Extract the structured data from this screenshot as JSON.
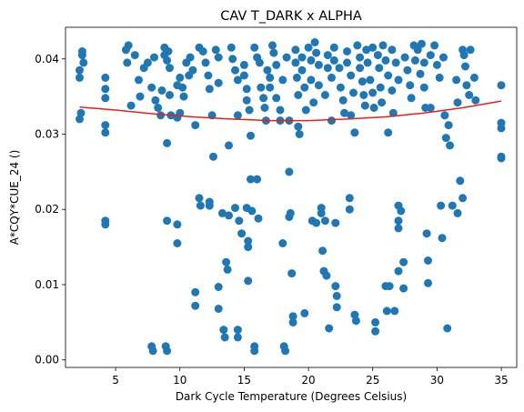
{
  "chart_data": {
    "type": "scatter",
    "title": "CAV T_DARK x ALPHA",
    "xlabel": "Dark Cycle Temperature (Degrees Celsius)",
    "ylabel": "A*CQY*CUE_24 ()",
    "xlim": [
      1.1,
      36.2
    ],
    "ylim": [
      -0.001,
      0.0442
    ],
    "xticks": [
      5,
      10,
      15,
      20,
      25,
      30,
      35
    ],
    "yticks": [
      0.0,
      0.01,
      0.02,
      0.03,
      0.04
    ],
    "ytick_labels": [
      "0.00",
      "0.01",
      "0.02",
      "0.03",
      "0.04"
    ],
    "grid": false,
    "legend": "none",
    "colors": {
      "points": "#1f77b4",
      "fit": "#e8201a"
    },
    "series": [
      {
        "type": "scatter",
        "points": [
          [
            2.2,
            0.0385
          ],
          [
            2.2,
            0.0375
          ],
          [
            2.4,
            0.0405
          ],
          [
            2.4,
            0.041
          ],
          [
            2.5,
            0.0395
          ],
          [
            2.3,
            0.0328
          ],
          [
            2.2,
            0.032
          ],
          [
            4.2,
            0.0375
          ],
          [
            4.2,
            0.036
          ],
          [
            4.2,
            0.0348
          ],
          [
            4.2,
            0.0312
          ],
          [
            4.2,
            0.0302
          ],
          [
            4.2,
            0.0185
          ],
          [
            4.2,
            0.018
          ],
          [
            5.8,
            0.0412
          ],
          [
            6.0,
            0.0418
          ],
          [
            5.9,
            0.0395
          ],
          [
            6.2,
            0.0338
          ],
          [
            6.5,
            0.0405
          ],
          [
            6.8,
            0.0372
          ],
          [
            6.9,
            0.035
          ],
          [
            7.2,
            0.0388
          ],
          [
            7.5,
            0.0395
          ],
          [
            7.8,
            0.0362
          ],
          [
            8.0,
            0.0402
          ],
          [
            8.1,
            0.0345
          ],
          [
            8.3,
            0.0335
          ],
          [
            8.5,
            0.0325
          ],
          [
            7.8,
            0.0018
          ],
          [
            7.9,
            0.0012
          ],
          [
            8.6,
            0.0358
          ],
          [
            8.8,
            0.0415
          ],
          [
            8.8,
            0.0405
          ],
          [
            9.0,
            0.0398
          ],
          [
            9.1,
            0.041
          ],
          [
            9.2,
            0.0388
          ],
          [
            9.2,
            0.0352
          ],
          [
            9.3,
            0.0325
          ],
          [
            9.0,
            0.0288
          ],
          [
            9.0,
            0.0185
          ],
          [
            8.9,
            0.0018
          ],
          [
            9.0,
            0.0012
          ],
          [
            9.8,
            0.0365
          ],
          [
            10.0,
            0.0375
          ],
          [
            10.2,
            0.0362
          ],
          [
            10.3,
            0.035
          ],
          [
            10.0,
            0.0328
          ],
          [
            9.8,
            0.0322
          ],
          [
            9.8,
            0.018
          ],
          [
            9.8,
            0.0155
          ],
          [
            10.5,
            0.0395
          ],
          [
            10.7,
            0.0378
          ],
          [
            10.8,
            0.0402
          ],
          [
            11.0,
            0.0385
          ],
          [
            11.2,
            0.0312
          ],
          [
            11.5,
            0.0415
          ],
          [
            11.2,
            0.009
          ],
          [
            11.2,
            0.0072
          ],
          [
            11.5,
            0.0215
          ],
          [
            11.6,
            0.0205
          ],
          [
            11.8,
            0.041
          ],
          [
            12.0,
            0.0395
          ],
          [
            12.2,
            0.0378
          ],
          [
            12.3,
            0.036
          ],
          [
            12.3,
            0.021
          ],
          [
            12.3,
            0.0205
          ],
          [
            12.5,
            0.0325
          ],
          [
            12.6,
            0.027
          ],
          [
            12.8,
            0.0412
          ],
          [
            13.0,
            0.0402
          ],
          [
            13.0,
            0.0368
          ],
          [
            13.0,
            0.0097
          ],
          [
            13.0,
            0.0068
          ],
          [
            13.3,
            0.0195
          ],
          [
            13.4,
            0.004
          ],
          [
            13.5,
            0.003
          ],
          [
            13.6,
            0.013
          ],
          [
            13.7,
            0.012
          ],
          [
            13.8,
            0.0285
          ],
          [
            13.8,
            0.0192
          ],
          [
            14.0,
            0.0415
          ],
          [
            14.1,
            0.04
          ],
          [
            14.3,
            0.0385
          ],
          [
            14.3,
            0.0202
          ],
          [
            14.5,
            0.0372
          ],
          [
            14.5,
            0.0325
          ],
          [
            14.6,
            0.0185
          ],
          [
            14.8,
            0.0168
          ],
          [
            14.5,
            0.004
          ],
          [
            14.5,
            0.003
          ],
          [
            15.0,
            0.0392
          ],
          [
            15.0,
            0.0378
          ],
          [
            15.2,
            0.036
          ],
          [
            15.2,
            0.0345
          ],
          [
            15.2,
            0.0202
          ],
          [
            15.3,
            0.0158
          ],
          [
            15.3,
            0.015
          ],
          [
            15.3,
            0.0105
          ],
          [
            15.4,
            0.0332
          ],
          [
            15.5,
            0.0298
          ],
          [
            15.5,
            0.024
          ],
          [
            15.6,
            0.0198
          ],
          [
            15.8,
            0.0415
          ],
          [
            15.8,
            0.0018
          ],
          [
            15.8,
            0.0012
          ],
          [
            16.0,
            0.0402
          ],
          [
            16.0,
            0.024
          ],
          [
            16.1,
            0.0188
          ],
          [
            16.2,
            0.0395
          ],
          [
            16.3,
            0.0362
          ],
          [
            16.5,
            0.0348
          ],
          [
            16.6,
            0.0335
          ],
          [
            16.7,
            0.0318
          ],
          [
            16.8,
            0.0385
          ],
          [
            17.0,
            0.0375
          ],
          [
            17.0,
            0.0362
          ],
          [
            17.2,
            0.0418
          ],
          [
            17.3,
            0.0408
          ],
          [
            17.5,
            0.0392
          ],
          [
            17.5,
            0.0348
          ],
          [
            17.8,
            0.0332
          ],
          [
            17.8,
            0.0318
          ],
          [
            18.0,
            0.0372
          ],
          [
            18.0,
            0.0155
          ],
          [
            18.1,
            0.0018
          ],
          [
            18.2,
            0.0012
          ],
          [
            18.3,
            0.0402
          ],
          [
            18.5,
            0.0318
          ],
          [
            18.5,
            0.025
          ],
          [
            18.5,
            0.019
          ],
          [
            18.6,
            0.0195
          ],
          [
            18.7,
            0.0115
          ],
          [
            18.8,
            0.0058
          ],
          [
            18.8,
            0.005
          ],
          [
            19.0,
            0.0412
          ],
          [
            19.0,
            0.0395
          ],
          [
            19.1,
            0.0375
          ],
          [
            19.2,
            0.0352
          ],
          [
            19.2,
            0.031
          ],
          [
            19.3,
            0.03
          ],
          [
            19.5,
            0.0402
          ],
          [
            19.5,
            0.0385
          ],
          [
            19.7,
            0.0362
          ],
          [
            19.7,
            0.0062
          ],
          [
            19.8,
            0.0332
          ],
          [
            20.0,
            0.0415
          ],
          [
            20.2,
            0.0398
          ],
          [
            20.2,
            0.0372
          ],
          [
            20.3,
            0.0185
          ],
          [
            20.4,
            0.0342
          ],
          [
            20.5,
            0.0422
          ],
          [
            20.6,
            0.0408
          ],
          [
            20.6,
            0.0182
          ],
          [
            20.8,
            0.0392
          ],
          [
            20.8,
            0.0365
          ],
          [
            21.0,
            0.0202
          ],
          [
            21.0,
            0.0195
          ],
          [
            21.1,
            0.0145
          ],
          [
            21.2,
            0.0118
          ],
          [
            21.3,
            0.0352
          ],
          [
            21.3,
            0.0185
          ],
          [
            21.4,
            0.0112
          ],
          [
            21.5,
            0.0405
          ],
          [
            21.5,
            0.0388
          ],
          [
            21.6,
            0.0042
          ],
          [
            21.8,
            0.0375
          ],
          [
            21.8,
            0.0318
          ],
          [
            22.0,
            0.0415
          ],
          [
            22.0,
            0.0398
          ],
          [
            22.1,
            0.0182
          ],
          [
            22.1,
            0.0098
          ],
          [
            22.2,
            0.0085
          ],
          [
            22.2,
            0.007
          ],
          [
            22.4,
            0.0388
          ],
          [
            22.5,
            0.0362
          ],
          [
            22.7,
            0.0345
          ],
          [
            22.8,
            0.0328
          ],
          [
            23.0,
            0.041
          ],
          [
            23.0,
            0.0395
          ],
          [
            23.2,
            0.0215
          ],
          [
            23.2,
            0.02
          ],
          [
            23.3,
            0.0378
          ],
          [
            23.3,
            0.0325
          ],
          [
            23.5,
            0.0355
          ],
          [
            23.6,
            0.0302
          ],
          [
            23.6,
            0.006
          ],
          [
            23.7,
            0.0052
          ],
          [
            23.8,
            0.0418
          ],
          [
            24.0,
            0.0402
          ],
          [
            24.0,
            0.0388
          ],
          [
            24.2,
            0.037
          ],
          [
            24.3,
            0.0352
          ],
          [
            24.4,
            0.0338
          ],
          [
            24.5,
            0.0412
          ],
          [
            24.6,
            0.0395
          ],
          [
            24.8,
            0.0372
          ],
          [
            25.0,
            0.0415
          ],
          [
            25.0,
            0.0355
          ],
          [
            25.1,
            0.0335
          ],
          [
            25.2,
            0.005
          ],
          [
            25.2,
            0.0038
          ],
          [
            25.4,
            0.0405
          ],
          [
            25.5,
            0.0388
          ],
          [
            25.6,
            0.0362
          ],
          [
            25.7,
            0.0342
          ],
          [
            25.8,
            0.0418
          ],
          [
            26.0,
            0.0398
          ],
          [
            26.0,
            0.0098
          ],
          [
            26.1,
            0.0065
          ],
          [
            26.2,
            0.0378
          ],
          [
            26.2,
            0.0302
          ],
          [
            26.3,
            0.0098
          ],
          [
            26.5,
            0.0412
          ],
          [
            26.5,
            0.0358
          ],
          [
            26.6,
            0.0328
          ],
          [
            26.7,
            0.0065
          ],
          [
            26.8,
            0.0395
          ],
          [
            27.0,
            0.0372
          ],
          [
            27.0,
            0.0205
          ],
          [
            27.0,
            0.0185
          ],
          [
            27.0,
            0.0175
          ],
          [
            27.0,
            0.0118
          ],
          [
            27.2,
            0.0198
          ],
          [
            27.4,
            0.013
          ],
          [
            27.4,
            0.0095
          ],
          [
            27.5,
            0.0402
          ],
          [
            27.7,
            0.0385
          ],
          [
            27.9,
            0.0365
          ],
          [
            28.0,
            0.0348
          ],
          [
            28.2,
            0.0418
          ],
          [
            28.3,
            0.0398
          ],
          [
            28.5,
            0.0412
          ],
          [
            28.7,
            0.038
          ],
          [
            28.8,
            0.042
          ],
          [
            29.0,
            0.0395
          ],
          [
            29.0,
            0.0362
          ],
          [
            29.1,
            0.0335
          ],
          [
            29.2,
            0.0168
          ],
          [
            29.3,
            0.0132
          ],
          [
            29.3,
            0.0102
          ],
          [
            29.5,
            0.0405
          ],
          [
            29.5,
            0.0335
          ],
          [
            29.8,
            0.0418
          ],
          [
            30.0,
            0.0392
          ],
          [
            30.2,
            0.0375
          ],
          [
            30.3,
            0.0205
          ],
          [
            30.4,
            0.0162
          ],
          [
            30.5,
            0.0402
          ],
          [
            30.6,
            0.0325
          ],
          [
            30.7,
            0.0295
          ],
          [
            30.8,
            0.0042
          ],
          [
            30.9,
            0.0312
          ],
          [
            31.0,
            0.0285
          ],
          [
            31.2,
            0.0205
          ],
          [
            31.5,
            0.0372
          ],
          [
            31.6,
            0.0342
          ],
          [
            31.6,
            0.0195
          ],
          [
            31.8,
            0.0238
          ],
          [
            32.0,
            0.0215
          ],
          [
            32.0,
            0.0412
          ],
          [
            32.1,
            0.0405
          ],
          [
            32.2,
            0.039
          ],
          [
            32.3,
            0.0365
          ],
          [
            32.5,
            0.0352
          ],
          [
            32.6,
            0.0412
          ],
          [
            32.9,
            0.0375
          ],
          [
            33.0,
            0.0345
          ],
          [
            35.0,
            0.0365
          ],
          [
            35.0,
            0.0315
          ],
          [
            35.0,
            0.0308
          ],
          [
            35.0,
            0.027
          ],
          [
            35.0,
            0.0268
          ]
        ]
      },
      {
        "type": "line",
        "x": [
          2.2,
          5,
          8,
          11,
          14,
          17,
          20,
          23,
          26,
          29,
          32,
          35
        ],
        "y": [
          0.0336,
          0.0332,
          0.0327,
          0.0323,
          0.032,
          0.0318,
          0.0318,
          0.032,
          0.0323,
          0.0328,
          0.0335,
          0.0344
        ]
      }
    ]
  }
}
